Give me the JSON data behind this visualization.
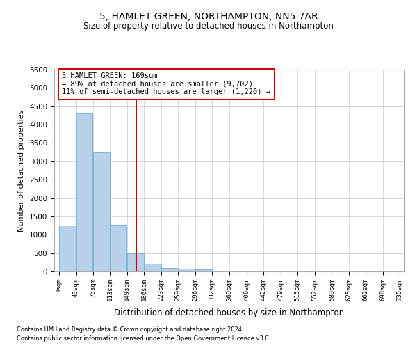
{
  "title": "5, HAMLET GREEN, NORTHAMPTON, NN5 7AR",
  "subtitle": "Size of property relative to detached houses in Northampton",
  "xlabel": "Distribution of detached houses by size in Northampton",
  "ylabel": "Number of detached properties",
  "footnote1": "Contains HM Land Registry data © Crown copyright and database right 2024.",
  "footnote2": "Contains public sector information licensed under the Open Government Licence v3.0.",
  "annotation_title": "5 HAMLET GREEN: 169sqm",
  "annotation_line1": "← 89% of detached houses are smaller (9,702)",
  "annotation_line2": "11% of semi-detached houses are larger (1,220) →",
  "property_size": 169,
  "bin_edges": [
    3,
    40,
    76,
    113,
    149,
    186,
    223,
    259,
    296,
    332,
    369,
    406,
    442,
    479,
    515,
    552,
    589,
    625,
    662,
    698,
    735
  ],
  "bar_heights": [
    1250,
    4300,
    3250,
    1270,
    490,
    210,
    100,
    70,
    50,
    0,
    0,
    0,
    0,
    0,
    0,
    0,
    0,
    0,
    0,
    0
  ],
  "bar_color": "#b8d0e8",
  "bar_edge_color": "#6aaed6",
  "vline_color": "#cc0000",
  "vline_x": 169,
  "annotation_box_color": "#cc0000",
  "ylim": [
    0,
    5500
  ],
  "yticks": [
    0,
    500,
    1000,
    1500,
    2000,
    2500,
    3000,
    3500,
    4000,
    4500,
    5000,
    5500
  ],
  "background_color": "#ffffff",
  "grid_color": "#c8c8c8"
}
